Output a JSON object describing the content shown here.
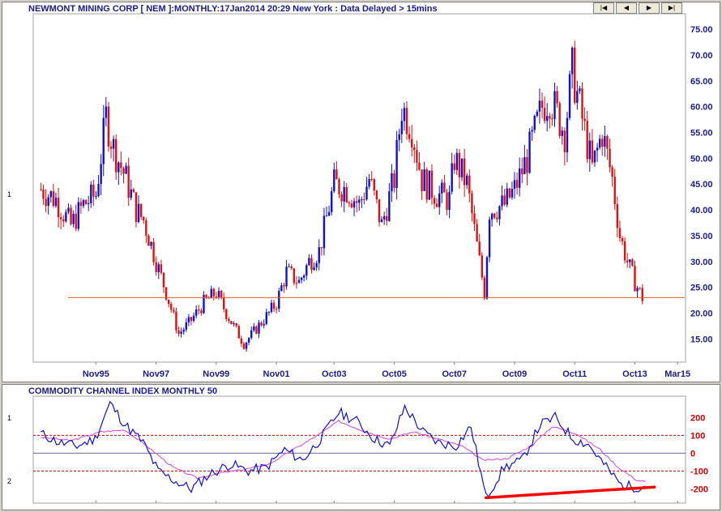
{
  "price_title": "NEWMONT MINING CORP [ NEM ]:MONTHLY:17Jan2014 20:29 New York : Data Delayed > 15mins",
  "cci_title": "COMMODITY CHANNEL INDEX MONTHLY 50",
  "nav_buttons": [
    "|◀",
    "◀",
    "▶",
    "▶|"
  ],
  "panel_markers": {
    "price": "1",
    "cci_top": "1",
    "cci_bottom": "2"
  },
  "colors": {
    "up": "#1010d0",
    "down": "#e01010",
    "hline": "#e06020",
    "cci": "#1010d0",
    "cci_ma": "#e040e0",
    "trend": "#ff0000",
    "grid_dash": "#d00000"
  },
  "chart_data": [
    {
      "type": "candlestick",
      "title": "NEWMONT MINING CORP [ NEM ]:MONTHLY:17Jan2014 20:29 New York : Data Delayed > 15mins",
      "x_ticks": [
        "Nov95",
        "Nov97",
        "Nov99",
        "Nov01",
        "Oct03",
        "Oct05",
        "Oct07",
        "Oct09",
        "Oct11",
        "Oct13",
        "Mar15"
      ],
      "y_ticks": [
        "15.00",
        "20.00",
        "25.00",
        "30.00",
        "35.00",
        "40.00",
        "45.00",
        "50.00",
        "55.00",
        "60.00",
        "65.00",
        "70.00",
        "75.00"
      ],
      "ylim": [
        10.5,
        78
      ],
      "horizontal_line": 23.0,
      "approx_close_path": [
        [
          "1994-01",
          44
        ],
        [
          "1994-07",
          42
        ],
        [
          "1995-01",
          37
        ],
        [
          "1995-06",
          41
        ],
        [
          "1995-11",
          43
        ],
        [
          "1996-03",
          58
        ],
        [
          "1996-06",
          52
        ],
        [
          "1996-11",
          46
        ],
        [
          "1997-03",
          40
        ],
        [
          "1997-06",
          38
        ],
        [
          "1997-11",
          30
        ],
        [
          "1998-03",
          24
        ],
        [
          "1998-08",
          16
        ],
        [
          "1998-12",
          18
        ],
        [
          "1999-06",
          22
        ],
        [
          "1999-11",
          24
        ],
        [
          "2000-03",
          20
        ],
        [
          "2000-10",
          14
        ],
        [
          "2001-03",
          17
        ],
        [
          "2001-08",
          20
        ],
        [
          "2001-11",
          22
        ],
        [
          "2002-03",
          28
        ],
        [
          "2002-08",
          26
        ],
        [
          "2002-12",
          30
        ],
        [
          "2003-04",
          32
        ],
        [
          "2003-10",
          45
        ],
        [
          "2004-03",
          44
        ],
        [
          "2004-08",
          41
        ],
        [
          "2004-12",
          46
        ],
        [
          "2005-05",
          37
        ],
        [
          "2005-10",
          46
        ],
        [
          "2006-01",
          60
        ],
        [
          "2006-05",
          56
        ],
        [
          "2006-09",
          46
        ],
        [
          "2007-03",
          43
        ],
        [
          "2007-08",
          42
        ],
        [
          "2007-10",
          50
        ],
        [
          "2008-03",
          45
        ],
        [
          "2008-10",
          24
        ],
        [
          "2008-12",
          40
        ],
        [
          "2009-06",
          41
        ],
        [
          "2009-10",
          44
        ],
        [
          "2010-03",
          50
        ],
        [
          "2010-09",
          60
        ],
        [
          "2010-12",
          62
        ],
        [
          "2011-06",
          55
        ],
        [
          "2011-09",
          67
        ],
        [
          "2011-12",
          60
        ],
        [
          "2012-05",
          48
        ],
        [
          "2012-09",
          55
        ],
        [
          "2013-01",
          46
        ],
        [
          "2013-04",
          35
        ],
        [
          "2013-07",
          30
        ],
        [
          "2013-10",
          26
        ],
        [
          "2014-01",
          23
        ]
      ]
    },
    {
      "type": "line",
      "title": "COMMODITY CHANNEL INDEX MONTHLY 50",
      "y_ticks": [
        "200",
        "100",
        "0",
        "-100",
        "-200"
      ],
      "ylim": [
        -280,
        320
      ],
      "reference_lines": [
        100,
        0,
        -100
      ],
      "series": [
        {
          "values": [
            [
              1994.0,
              110
            ],
            [
              1994.6,
              60
            ],
            [
              1995.2,
              40
            ],
            [
              1995.8,
              80
            ],
            [
              1996.3,
              280
            ],
            [
              1996.8,
              160
            ],
            [
              1997.4,
              60
            ],
            [
              1997.9,
              -100
            ],
            [
              1998.5,
              -160
            ],
            [
              1999.0,
              -200
            ],
            [
              1999.6,
              -120
            ],
            [
              2000.3,
              -60
            ],
            [
              2000.9,
              -100
            ],
            [
              2001.5,
              -80
            ],
            [
              2002.1,
              20
            ],
            [
              2002.7,
              -40
            ],
            [
              2003.3,
              80
            ],
            [
              2003.9,
              230
            ],
            [
              2004.5,
              180
            ],
            [
              2005.1,
              80
            ],
            [
              2005.6,
              40
            ],
            [
              2006.1,
              260
            ],
            [
              2006.7,
              120
            ],
            [
              2007.2,
              60
            ],
            [
              2007.8,
              40
            ],
            [
              2008.3,
              150
            ],
            [
              2008.8,
              -250
            ],
            [
              2009.4,
              -80
            ],
            [
              2010.0,
              -40
            ],
            [
              2010.6,
              160
            ],
            [
              2011.1,
              200
            ],
            [
              2011.7,
              80
            ],
            [
              2012.2,
              50
            ],
            [
              2012.8,
              -80
            ],
            [
              2013.3,
              -180
            ],
            [
              2013.8,
              -190
            ],
            [
              2014.1,
              -185
            ]
          ]
        },
        {
          "values": [
            [
              1994.0,
              90
            ],
            [
              1995.0,
              70
            ],
            [
              1996.0,
              120
            ],
            [
              1996.8,
              130
            ],
            [
              1997.6,
              30
            ],
            [
              1998.4,
              -80
            ],
            [
              1999.2,
              -140
            ],
            [
              2000.0,
              -110
            ],
            [
              2000.8,
              -90
            ],
            [
              2001.6,
              -60
            ],
            [
              2002.4,
              20
            ],
            [
              2003.2,
              100
            ],
            [
              2003.9,
              180
            ],
            [
              2004.8,
              120
            ],
            [
              2005.6,
              80
            ],
            [
              2006.4,
              120
            ],
            [
              2007.2,
              80
            ],
            [
              2008.0,
              40
            ],
            [
              2008.7,
              -40
            ],
            [
              2009.5,
              -30
            ],
            [
              2010.3,
              40
            ],
            [
              2011.0,
              150
            ],
            [
              2011.8,
              110
            ],
            [
              2012.6,
              20
            ],
            [
              2013.2,
              -80
            ],
            [
              2013.8,
              -150
            ],
            [
              2014.1,
              -160
            ]
          ]
        }
      ],
      "trendline": [
        [
          2008.8,
          -250
        ],
        [
          2014.4,
          -190
        ]
      ]
    }
  ]
}
